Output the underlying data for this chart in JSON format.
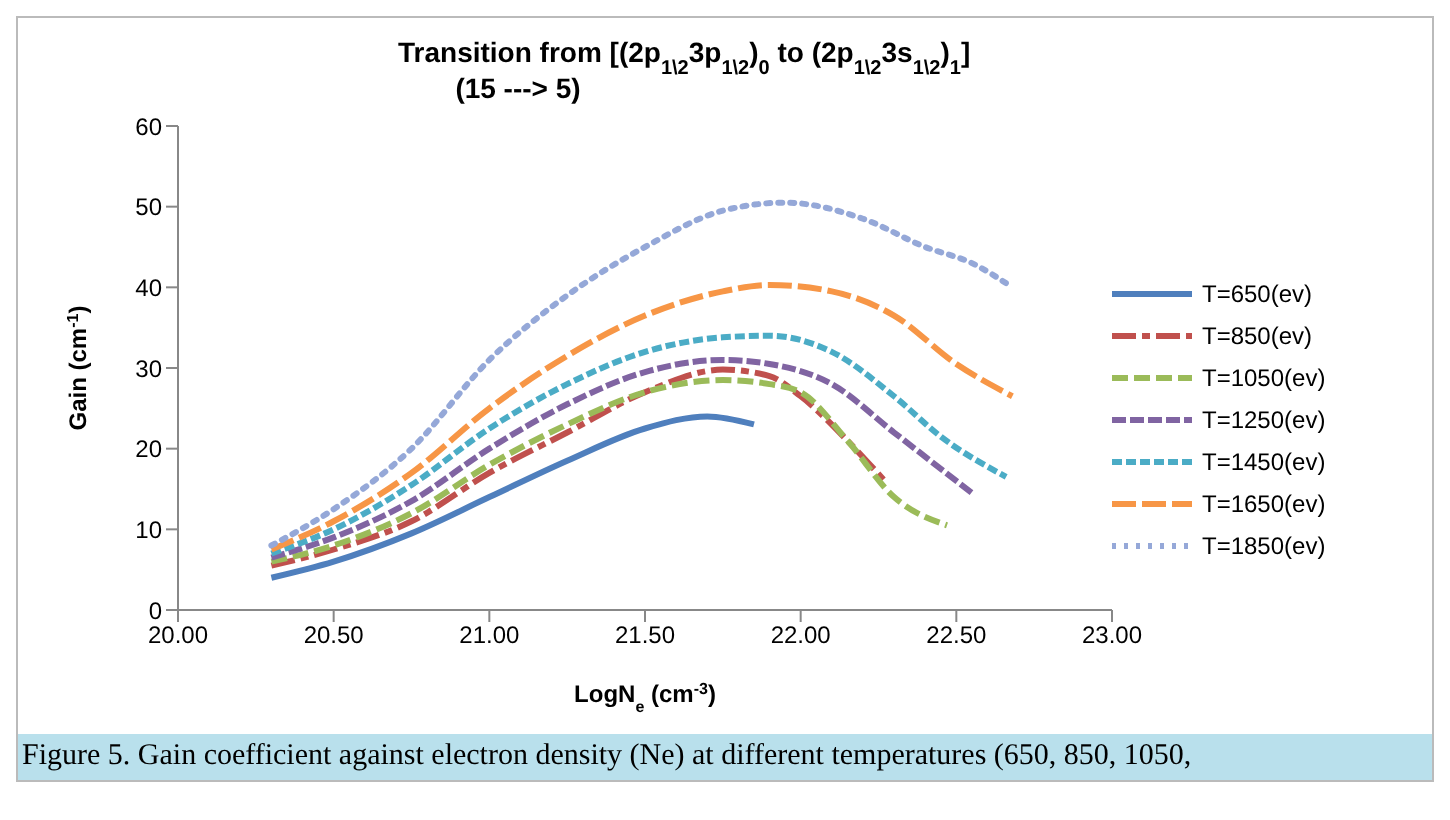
{
  "chart_data": {
    "type": "line",
    "title": "Transition from [(2p$_{1\\2}$3p$_{1\\2}$)$_{0}$ to (2p$_{1\\2}$3s$_{1\\2}$)$_{1}$]",
    "subtitle": "(15 ---> 5)",
    "xlabel": "LogN$_{e}$  (cm$^{-3}$)",
    "ylabel": "Gain  (cm$^{-1}$)",
    "xlim": [
      20,
      23
    ],
    "xticks": [
      {
        "value": 20,
        "label": "20.00"
      },
      {
        "value": 20.5,
        "label": "20.50"
      },
      {
        "value": 21,
        "label": "21.00"
      },
      {
        "value": 21.5,
        "label": "21.50"
      },
      {
        "value": 22,
        "label": "22.00"
      },
      {
        "value": 22.5,
        "label": "22.50"
      },
      {
        "value": 23,
        "label": "23.00"
      }
    ],
    "ylim": [
      0,
      60
    ],
    "yticks": [
      0,
      10,
      20,
      30,
      40,
      50,
      60
    ],
    "legend": "right",
    "series": [
      {
        "name": "T=650(ev)",
        "color": "#4f7fbd",
        "line_style": "solid",
        "x": [
          20.3,
          20.5,
          20.75,
          21.0,
          21.25,
          21.5,
          21.7,
          21.85
        ],
        "values": [
          4,
          6,
          9.5,
          14,
          18.5,
          22.5,
          24,
          23
        ]
      },
      {
        "name": "T=850(ev)",
        "color": "#c0504d",
        "line_style": "dashed",
        "x": [
          20.3,
          20.5,
          20.75,
          21.0,
          21.25,
          21.5,
          21.75,
          21.9,
          22.0,
          22.15,
          22.27
        ],
        "values": [
          5.5,
          7.5,
          11,
          17,
          22,
          27,
          29.8,
          29,
          26.5,
          21,
          16
        ]
      },
      {
        "name": "T=1050(ev)",
        "color": "#9bbb59",
        "line_style": "dashed",
        "x": [
          20.3,
          20.5,
          20.75,
          21.0,
          21.25,
          21.5,
          21.75,
          21.9,
          22.0,
          22.15,
          22.3,
          22.47
        ],
        "values": [
          6,
          8,
          12,
          18,
          23,
          27,
          28.5,
          28,
          27,
          21,
          14,
          10.5
        ]
      },
      {
        "name": "T=1250(ev)",
        "color": "#8064a2",
        "line_style": "dashed",
        "x": [
          20.3,
          20.5,
          20.75,
          21.0,
          21.25,
          21.5,
          21.75,
          21.9,
          22.1,
          22.3,
          22.55
        ],
        "values": [
          6.5,
          9,
          13.5,
          20,
          25.5,
          29.5,
          31,
          30.5,
          28,
          22,
          14.5
        ]
      },
      {
        "name": "T=1450(ev)",
        "color": "#4bacc6",
        "line_style": "dashed",
        "x": [
          20.3,
          20.5,
          20.75,
          21.0,
          21.25,
          21.5,
          21.75,
          21.9,
          22.1,
          22.3,
          22.45,
          22.66
        ],
        "values": [
          7,
          10,
          15.5,
          22.5,
          28,
          32,
          33.8,
          34,
          32,
          26.5,
          21.5,
          16.5
        ]
      },
      {
        "name": "T=1650(ev)",
        "color": "#f79646",
        "line_style": "dashed",
        "x": [
          20.3,
          20.5,
          20.75,
          21.0,
          21.25,
          21.5,
          21.75,
          21.9,
          22.1,
          22.3,
          22.5,
          22.68
        ],
        "values": [
          7.5,
          11,
          17,
          25,
          31.5,
          36.5,
          39.5,
          40.3,
          39.5,
          36.5,
          30.5,
          26.5
        ]
      },
      {
        "name": "T=1850(ev)",
        "color": "#95a8d8",
        "line_style": "dotted",
        "x": [
          20.3,
          20.5,
          20.75,
          21.0,
          21.25,
          21.5,
          21.75,
          21.95,
          22.2,
          22.4,
          22.55,
          22.68
        ],
        "values": [
          8,
          12.5,
          20,
          31,
          39,
          45,
          49.5,
          50.5,
          48.5,
          45,
          43,
          40
        ]
      }
    ],
    "annotations": [
      "Figure 5. Gain coefficient against electron density (Ne) at different temperatures (650, 850, 1050,"
    ]
  }
}
